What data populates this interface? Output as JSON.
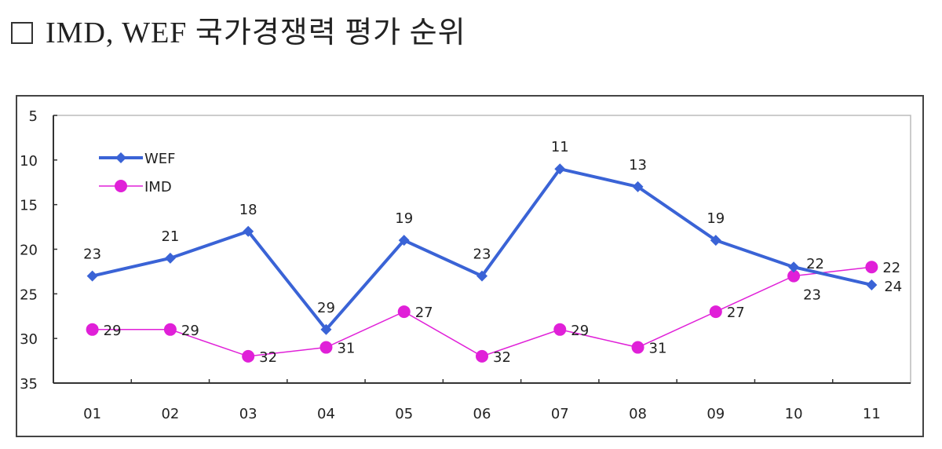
{
  "title": "IMD, WEF 국가경쟁력 평가 순위",
  "chart_data": {
    "type": "line",
    "title": "IMD, WEF 국가경쟁력 평가 순위",
    "categories": [
      "01",
      "02",
      "03",
      "04",
      "05",
      "06",
      "07",
      "08",
      "09",
      "10",
      "11"
    ],
    "ylim": [
      35,
      5
    ],
    "y_reversed": true,
    "yticks": [
      5,
      10,
      15,
      20,
      25,
      30,
      35
    ],
    "grid": false,
    "legend": "top-left",
    "series": [
      {
        "name": "WEF",
        "color": "#3a63d6",
        "marker": "diamond",
        "values": [
          23,
          21,
          18,
          29,
          19,
          23,
          11,
          13,
          19,
          22,
          24
        ]
      },
      {
        "name": "IMD",
        "color": "#e020d8",
        "marker": "circle",
        "values": [
          29,
          29,
          32,
          31,
          27,
          32,
          29,
          31,
          27,
          23,
          22
        ]
      }
    ]
  }
}
